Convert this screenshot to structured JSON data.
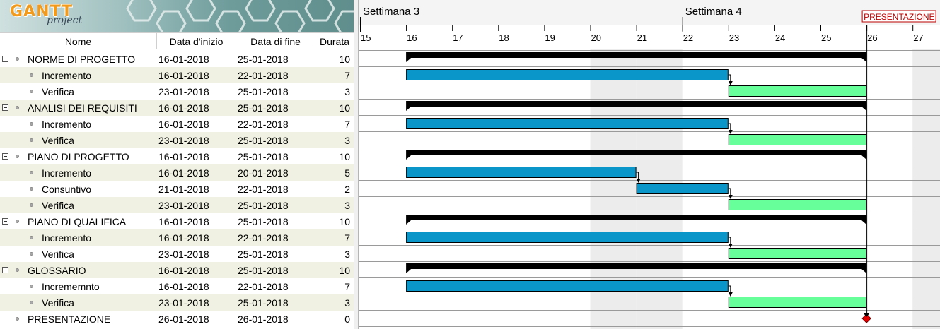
{
  "logo": {
    "brand": "GANTT",
    "sub": "project"
  },
  "columns": {
    "name": "Nome",
    "start": "Data d'inizio",
    "end": "Data di fine",
    "duration": "Durata"
  },
  "tasks": [
    {
      "name": "NORME DI PROGETTO",
      "start": "16-01-2018",
      "end": "25-01-2018",
      "duration": "10",
      "group": true,
      "s": 16,
      "e": 26,
      "kind": "summary"
    },
    {
      "name": "Incremento",
      "start": "16-01-2018",
      "end": "22-01-2018",
      "duration": "7",
      "group": false,
      "s": 16,
      "e": 23,
      "kind": "blue"
    },
    {
      "name": "Verifica",
      "start": "23-01-2018",
      "end": "25-01-2018",
      "duration": "3",
      "group": false,
      "s": 23,
      "e": 26,
      "kind": "green"
    },
    {
      "name": "ANALISI DEI REQUISITI",
      "start": "16-01-2018",
      "end": "25-01-2018",
      "duration": "10",
      "group": true,
      "s": 16,
      "e": 26,
      "kind": "summary"
    },
    {
      "name": "Incremento",
      "start": "16-01-2018",
      "end": "22-01-2018",
      "duration": "7",
      "group": false,
      "s": 16,
      "e": 23,
      "kind": "blue"
    },
    {
      "name": "Verifica",
      "start": "23-01-2018",
      "end": "25-01-2018",
      "duration": "3",
      "group": false,
      "s": 23,
      "e": 26,
      "kind": "green"
    },
    {
      "name": "PIANO DI PROGETTO",
      "start": "16-01-2018",
      "end": "25-01-2018",
      "duration": "10",
      "group": true,
      "s": 16,
      "e": 26,
      "kind": "summary"
    },
    {
      "name": "Incremento",
      "start": "16-01-2018",
      "end": "20-01-2018",
      "duration": "5",
      "group": false,
      "s": 16,
      "e": 21,
      "kind": "blue"
    },
    {
      "name": "Consuntivo",
      "start": "21-01-2018",
      "end": "22-01-2018",
      "duration": "2",
      "group": false,
      "s": 21,
      "e": 23,
      "kind": "blue"
    },
    {
      "name": "Verifica",
      "start": "23-01-2018",
      "end": "25-01-2018",
      "duration": "3",
      "group": false,
      "s": 23,
      "e": 26,
      "kind": "green"
    },
    {
      "name": "PIANO DI QUALIFICA",
      "start": "16-01-2018",
      "end": "25-01-2018",
      "duration": "10",
      "group": true,
      "s": 16,
      "e": 26,
      "kind": "summary"
    },
    {
      "name": "Incremento",
      "start": "16-01-2018",
      "end": "22-01-2018",
      "duration": "7",
      "group": false,
      "s": 16,
      "e": 23,
      "kind": "blue"
    },
    {
      "name": "Verifica",
      "start": "23-01-2018",
      "end": "25-01-2018",
      "duration": "3",
      "group": false,
      "s": 23,
      "e": 26,
      "kind": "green"
    },
    {
      "name": "GLOSSARIO",
      "start": "16-01-2018",
      "end": "25-01-2018",
      "duration": "10",
      "group": true,
      "s": 16,
      "e": 26,
      "kind": "summary"
    },
    {
      "name": "Incrememnto",
      "start": "16-01-2018",
      "end": "22-01-2018",
      "duration": "7",
      "group": false,
      "s": 16,
      "e": 23,
      "kind": "blue"
    },
    {
      "name": "Verifica",
      "start": "23-01-2018",
      "end": "25-01-2018",
      "duration": "3",
      "group": false,
      "s": 23,
      "e": 26,
      "kind": "green"
    },
    {
      "name": "PRESENTAZIONE",
      "start": "26-01-2018",
      "end": "26-01-2018",
      "duration": "0",
      "group": false,
      "top": true,
      "s": 26,
      "e": 26,
      "kind": "milestone"
    }
  ],
  "timeline": {
    "weeks": [
      {
        "label": "Settimana 3",
        "day": 15
      },
      {
        "label": "Settimana 4",
        "day": 22
      }
    ],
    "days": [
      "15",
      "16",
      "17",
      "18",
      "19",
      "20",
      "21",
      "22",
      "23",
      "24",
      "25",
      "26",
      "27"
    ],
    "weekend_days": [
      20,
      21,
      27
    ],
    "milestone_label": "PRESENTAZIONE",
    "milestone_day": 26
  },
  "colors": {
    "summary": "#000000",
    "blue": "#0a96c8",
    "green": "#66ff99",
    "milestone": "#e00000",
    "weekend": "#ececec",
    "alt_row": "#f0f1e2"
  }
}
